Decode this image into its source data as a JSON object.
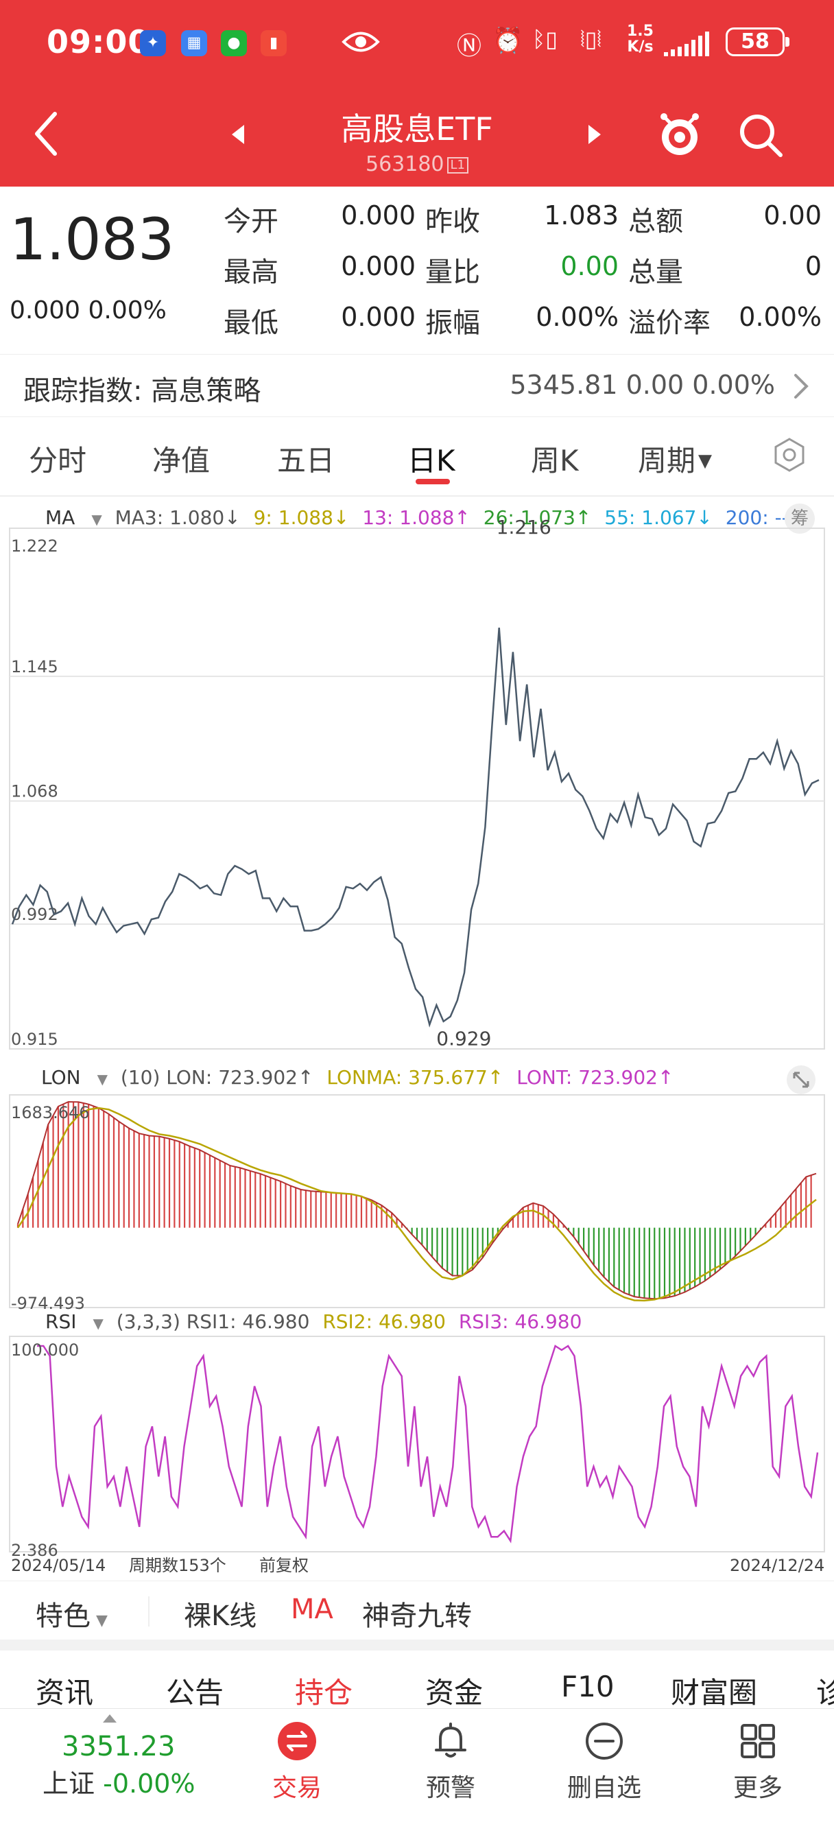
{
  "status_bar": {
    "time": "09:00",
    "net_speed_top": "1.5",
    "net_speed_bottom": "K/s",
    "battery": "58"
  },
  "header": {
    "title": "高股息ETF",
    "code": "563180",
    "level_badge": "L1"
  },
  "quote": {
    "price": "1.083",
    "change": "0.000 0.00%",
    "fields": [
      {
        "label": "今开",
        "value": "0.000"
      },
      {
        "label": "昨收",
        "value": "1.083"
      },
      {
        "label": "总额",
        "value": "0.00"
      },
      {
        "label": "最高",
        "value": "0.000"
      },
      {
        "label": "量比",
        "value": "0.00",
        "color": "#1f9d2e"
      },
      {
        "label": "总量",
        "value": "0"
      },
      {
        "label": "最低",
        "value": "0.000"
      },
      {
        "label": "振幅",
        "value": "0.00%"
      },
      {
        "label": "溢价率",
        "value": "0.00%"
      }
    ]
  },
  "tracking": {
    "label": "跟踪指数: 高息策略",
    "value": "5345.81  0.00  0.00%"
  },
  "tabs": [
    "分时",
    "净值",
    "五日",
    "日K",
    "周K",
    "周期"
  ],
  "active_tab": "日K",
  "ma_legend": {
    "name": "MA",
    "items": [
      {
        "text": "MA3: 1.080↓",
        "color": "#555555"
      },
      {
        "text": "9: 1.088↓",
        "color": "#b8a500"
      },
      {
        "text": "13: 1.088↑",
        "color": "#c23bc2"
      },
      {
        "text": "26: 1.073↑",
        "color": "#2e9a2e"
      },
      {
        "text": "55: 1.067↓",
        "color": "#1ea9d8"
      },
      {
        "text": "200: --",
        "color": "#3b7bd8"
      }
    ],
    "chip": "筹"
  },
  "lon_legend": {
    "name": "LON",
    "items": [
      {
        "text": "(10) LON: 723.902↑",
        "color": "#555555"
      },
      {
        "text": "LONMA: 375.677↑",
        "color": "#b8a500"
      },
      {
        "text": "LONT: 723.902↑",
        "color": "#c23bc2"
      }
    ]
  },
  "rsi_legend": {
    "name": "RSI",
    "items": [
      {
        "text": "(3,3,3) RSI1: 46.980",
        "color": "#555555"
      },
      {
        "text": "RSI2: 46.980",
        "color": "#b8a500"
      },
      {
        "text": "RSI3: 46.980",
        "color": "#c23bc2"
      }
    ]
  },
  "chart_data": [
    {
      "type": "line",
      "name": "price",
      "ylim": [
        0.915,
        1.222
      ],
      "y_ticks": [
        "1.222",
        "1.145",
        "1.068",
        "0.992",
        "0.915"
      ],
      "annotations": [
        {
          "text": "1.216"
        },
        {
          "text": "0.929"
        }
      ],
      "values": [
        0.992,
        1.003,
        1.01,
        1.004,
        1.016,
        1.012,
        0.998,
        1.0,
        1.005,
        0.992,
        1.008,
        0.997,
        0.992,
        1.002,
        0.994,
        0.987,
        0.991,
        0.992,
        0.993,
        0.986,
        0.995,
        0.996,
        1.006,
        1.012,
        1.023,
        1.021,
        1.018,
        1.014,
        1.016,
        1.011,
        1.01,
        1.023,
        1.028,
        1.026,
        1.023,
        1.025,
        1.008,
        1.008,
        1.0,
        1.008,
        1.003,
        1.003,
        0.988,
        0.988,
        0.989,
        0.992,
        0.996,
        1.002,
        1.015,
        1.014,
        1.017,
        1.013,
        1.018,
        1.021,
        1.007,
        0.984,
        0.98,
        0.965,
        0.952,
        0.947,
        0.93,
        0.942,
        0.932,
        0.935,
        0.945,
        0.962,
        1.001,
        1.017,
        1.052,
        1.115,
        1.175,
        1.115,
        1.16,
        1.105,
        1.14,
        1.095,
        1.125,
        1.087,
        1.098,
        1.08,
        1.085,
        1.075,
        1.071,
        1.062,
        1.051,
        1.045,
        1.06,
        1.055,
        1.067,
        1.053,
        1.072,
        1.058,
        1.057,
        1.047,
        1.051,
        1.066,
        1.061,
        1.056,
        1.043,
        1.04,
        1.054,
        1.055,
        1.062,
        1.073,
        1.074,
        1.082,
        1.094,
        1.094,
        1.098,
        1.091,
        1.105,
        1.088,
        1.099,
        1.091,
        1.072,
        1.079,
        1.081
      ]
    },
    {
      "type": "bar",
      "name": "LON",
      "ylim": [
        -974.493,
        1683.646
      ],
      "y_ticks": [
        "1683.646",
        "-974.493"
      ],
      "values": [
        50,
        450,
        900,
        1380,
        1620,
        1683,
        1680,
        1650,
        1600,
        1520,
        1420,
        1330,
        1260,
        1230,
        1220,
        1190,
        1150,
        1090,
        1040,
        970,
        900,
        830,
        800,
        760,
        720,
        670,
        620,
        560,
        510,
        490,
        480,
        470,
        460,
        450,
        420,
        370,
        300,
        200,
        60,
        -90,
        -230,
        -390,
        -540,
        -640,
        -640,
        -560,
        -400,
        -200,
        -20,
        130,
        270,
        330,
        290,
        180,
        40,
        -120,
        -310,
        -500,
        -660,
        -790,
        -870,
        -920,
        -940,
        -950,
        -940,
        -910,
        -860,
        -790,
        -710,
        -610,
        -500,
        -380,
        -240,
        -100,
        50,
        200,
        360,
        520,
        680,
        723.902
      ],
      "lonma": [
        0,
        200,
        500,
        800,
        1100,
        1350,
        1500,
        1580,
        1600,
        1580,
        1520,
        1450,
        1370,
        1300,
        1250,
        1230,
        1200,
        1160,
        1120,
        1060,
        1000,
        940,
        880,
        820,
        770,
        730,
        700,
        650,
        590,
        540,
        490,
        470,
        460,
        450,
        420,
        350,
        250,
        120,
        -50,
        -230,
        -400,
        -550,
        -660,
        -690,
        -640,
        -520,
        -350,
        -160,
        20,
        150,
        220,
        230,
        170,
        50,
        -100,
        -270,
        -440,
        -610,
        -750,
        -860,
        -930,
        -970,
        -974,
        -960,
        -920,
        -860,
        -780,
        -700,
        -620,
        -540,
        -470,
        -410,
        -350,
        -280,
        -200,
        -100,
        30,
        160,
        270,
        375.677
      ]
    },
    {
      "type": "line",
      "name": "RSI1",
      "ylim": [
        2.386,
        100.0
      ],
      "y_ticks": [
        "100.000",
        "2.386"
      ],
      "x_labels": [
        "2024/05/14",
        "周期数153个",
        "前复权",
        "2024/12/24"
      ],
      "values": [
        100,
        100,
        95,
        40,
        20,
        35,
        25,
        15,
        10,
        60,
        65,
        30,
        35,
        20,
        40,
        25,
        10,
        50,
        60,
        35,
        55,
        25,
        20,
        50,
        70,
        90,
        95,
        70,
        75,
        60,
        40,
        30,
        20,
        60,
        80,
        70,
        20,
        40,
        55,
        30,
        15,
        10,
        5,
        50,
        60,
        30,
        45,
        55,
        35,
        25,
        15,
        10,
        20,
        45,
        80,
        95,
        90,
        85,
        40,
        70,
        30,
        45,
        15,
        30,
        20,
        40,
        85,
        70,
        20,
        10,
        15,
        5,
        5,
        8,
        3,
        30,
        45,
        55,
        60,
        80,
        90,
        100,
        98,
        100,
        95,
        70,
        30,
        40,
        30,
        35,
        25,
        40,
        35,
        30,
        15,
        10,
        20,
        40,
        70,
        75,
        50,
        40,
        35,
        20,
        70,
        60,
        75,
        90,
        80,
        70,
        85,
        90,
        85,
        92,
        95,
        40,
        35,
        70,
        75,
        50,
        30,
        25,
        46.98
      ]
    }
  ],
  "features": [
    "特色",
    "裸K线",
    "MA",
    "神奇九转"
  ],
  "active_feature": "MA",
  "info_tabs": [
    "资讯",
    "公告",
    "持仓",
    "资金",
    "F10",
    "财富圈",
    "诊"
  ],
  "active_info_tab": "持仓",
  "bottom_nav": {
    "index_value": "3351.23",
    "index_name": "上证",
    "index_change": "-0.00%",
    "items": [
      "交易",
      "预警",
      "删自选",
      "更多"
    ]
  }
}
